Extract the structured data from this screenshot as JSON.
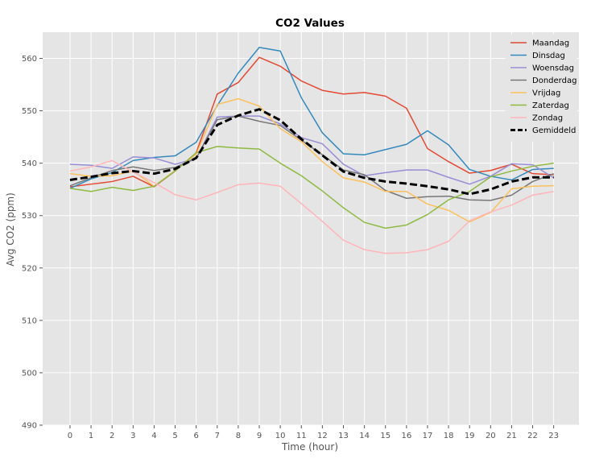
{
  "chart_data": {
    "type": "line",
    "title": "CO2 Values",
    "xlabel": "Time (hour)",
    "ylabel": "Avg CO2 (ppm)",
    "x": [
      0,
      1,
      2,
      3,
      4,
      5,
      6,
      7,
      8,
      9,
      10,
      11,
      12,
      13,
      14,
      15,
      16,
      17,
      18,
      19,
      20,
      21,
      22,
      23
    ],
    "xticks": [
      "0",
      "1",
      "2",
      "3",
      "4",
      "5",
      "6",
      "7",
      "8",
      "9",
      "10",
      "11",
      "12",
      "13",
      "14",
      "15",
      "16",
      "17",
      "18",
      "19",
      "20",
      "21",
      "22",
      "23"
    ],
    "xlim": [
      -1.3,
      24.2
    ],
    "ylim": [
      490,
      565
    ],
    "yticks": [
      490,
      500,
      510,
      520,
      530,
      540,
      550,
      560
    ],
    "yticklabels": [
      "490",
      "500",
      "510",
      "520",
      "530",
      "540",
      "550",
      "560"
    ],
    "grid": true,
    "legend_position": "top-right",
    "series": [
      {
        "name": "Maandag",
        "color": "#E24A33",
        "style": "solid",
        "values": [
          535.5,
          536.0,
          536.5,
          537.5,
          535.5,
          538.5,
          542.0,
          553.2,
          555.4,
          560.2,
          558.5,
          555.7,
          553.9,
          553.2,
          553.5,
          552.8,
          550.5,
          542.8,
          540.3,
          538.1,
          538.6,
          539.8,
          538.0,
          537.8
        ]
      },
      {
        "name": "Dinsdag",
        "color": "#348ABD",
        "style": "solid",
        "values": [
          535.2,
          537.0,
          538.2,
          540.5,
          541.1,
          541.4,
          544.0,
          551.0,
          557.2,
          562.1,
          561.4,
          552.5,
          545.8,
          541.8,
          541.6,
          542.6,
          543.6,
          546.2,
          543.5,
          538.8,
          537.5,
          536.8,
          538.8,
          539.0
        ]
      },
      {
        "name": "Woensdag",
        "color": "#988ED5",
        "style": "solid",
        "values": [
          539.8,
          539.6,
          539.0,
          541.2,
          541.0,
          539.8,
          540.9,
          548.8,
          549.0,
          549.0,
          547.5,
          544.9,
          543.7,
          539.8,
          537.6,
          538.2,
          538.7,
          538.7,
          537.3,
          536.0,
          537.5,
          539.9,
          539.7,
          537.2
        ]
      },
      {
        "name": "Donderdag",
        "color": "#777777",
        "style": "solid",
        "values": [
          535.7,
          537.2,
          538.6,
          539.3,
          538.6,
          539.2,
          540.9,
          548.3,
          549.0,
          548.0,
          547.2,
          544.4,
          541.6,
          538.7,
          537.8,
          534.8,
          533.3,
          533.6,
          533.7,
          533.0,
          532.9,
          533.9,
          536.5,
          538.0
        ]
      },
      {
        "name": "Vrijdag",
        "color": "#FBC15E",
        "style": "solid",
        "values": [
          538.0,
          537.5,
          537.6,
          538.5,
          535.6,
          538.6,
          541.7,
          551.2,
          552.3,
          550.9,
          546.6,
          544.1,
          540.3,
          537.2,
          536.4,
          534.6,
          534.6,
          532.2,
          531.0,
          528.8,
          530.6,
          535.1,
          535.6,
          535.7
        ]
      },
      {
        "name": "Zaterdag",
        "color": "#8EBA42",
        "style": "solid",
        "values": [
          535.2,
          534.6,
          535.4,
          534.8,
          535.6,
          538.5,
          542.0,
          543.2,
          542.9,
          542.7,
          540.0,
          537.6,
          534.7,
          531.5,
          528.7,
          527.6,
          528.2,
          530.2,
          533.0,
          534.6,
          537.4,
          538.5,
          539.4,
          540.0
        ]
      },
      {
        "name": "Zondag",
        "color": "#FFB5B8",
        "style": "solid",
        "values": [
          538.5,
          539.3,
          540.5,
          538.3,
          536.3,
          534.0,
          533.0,
          534.4,
          535.9,
          536.2,
          535.6,
          532.3,
          528.9,
          525.3,
          523.5,
          522.8,
          522.9,
          523.5,
          525.1,
          529.0,
          530.7,
          532.0,
          533.9,
          534.6
        ]
      },
      {
        "name": "Gemiddeld",
        "color": "#000000",
        "style": "dashed",
        "values": [
          536.8,
          537.4,
          538.1,
          538.5,
          538.0,
          538.9,
          541.0,
          547.3,
          549.1,
          550.3,
          548.2,
          544.6,
          541.5,
          538.4,
          537.2,
          536.5,
          536.1,
          535.6,
          535.0,
          534.1,
          535.0,
          536.5,
          537.3,
          537.3
        ]
      }
    ]
  }
}
